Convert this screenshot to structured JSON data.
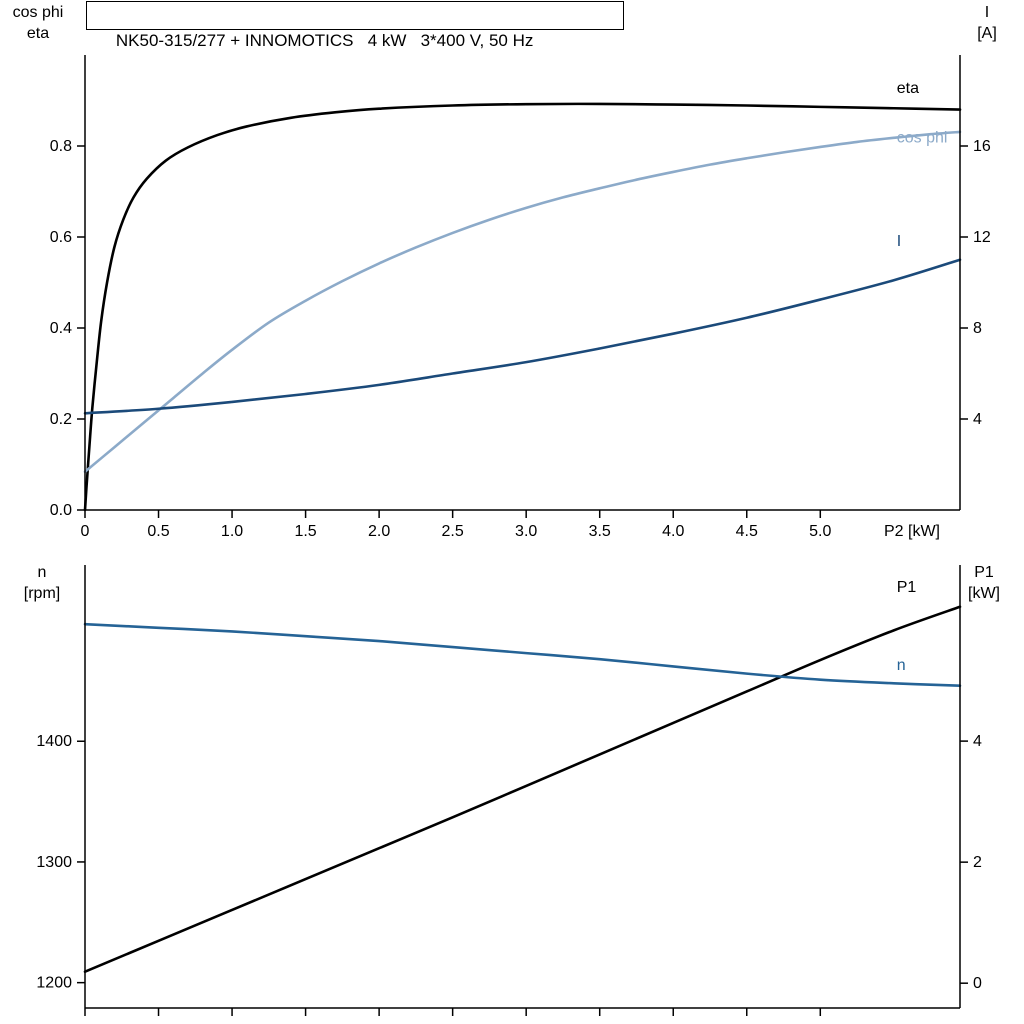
{
  "title": "NK50-315/277 + INNOMOTICS   4 kW   3*400 V, 50 Hz",
  "corner_labels": {
    "top_left": [
      "cos phi",
      "eta"
    ],
    "top_right": [
      "I",
      "[A]"
    ],
    "bottom_left": [
      "n",
      "[rpm]"
    ],
    "bottom_right": [
      "P1",
      "[kW]"
    ]
  },
  "colors": {
    "eta": "#000000",
    "cos_phi": "#8caac9",
    "current": "#1b4a7a",
    "speed": "#256396",
    "p1": "#000000",
    "axis": "#000000"
  },
  "chart_data": [
    {
      "type": "line",
      "title": "NK50-315/277 + INNOMOTICS 4 kW 3*400 V, 50 Hz",
      "grid": false,
      "x_axis": {
        "label": "P2 [kW]",
        "min": 0,
        "max": 5.95,
        "ticks": [
          0,
          0.5,
          1,
          1.5,
          2,
          2.5,
          3,
          3.5,
          4,
          4.5,
          5
        ],
        "tick_labels": [
          "0",
          "0.5",
          "1.0",
          "1.5",
          "2.0",
          "2.5",
          "3.0",
          "3.5",
          "4.0",
          "4.5",
          "5.0"
        ],
        "show_tick_labels": true
      },
      "y_left": {
        "label": "cos phi / eta",
        "min": 0,
        "max": 1.0,
        "ticks": [
          0,
          0.2,
          0.4,
          0.6,
          0.8
        ],
        "tick_labels": [
          "0.0",
          "0.2",
          "0.4",
          "0.6",
          "0.8"
        ]
      },
      "y_right": {
        "label": "I [A]",
        "min": 0,
        "max": 20,
        "ticks": [
          4,
          8,
          12,
          16
        ],
        "tick_labels": [
          "4",
          "8",
          "12",
          "16"
        ]
      },
      "series": [
        {
          "name": "eta",
          "axis": "left",
          "color": "#000000",
          "label_pos": {
            "x": 5.52,
            "y": 0.916
          },
          "points": [
            [
              0,
              0
            ],
            [
              0.01,
              0.05
            ],
            [
              0.03,
              0.14
            ],
            [
              0.05,
              0.225
            ],
            [
              0.08,
              0.325
            ],
            [
              0.11,
              0.415
            ],
            [
              0.15,
              0.5
            ],
            [
              0.2,
              0.578
            ],
            [
              0.26,
              0.638
            ],
            [
              0.33,
              0.687
            ],
            [
              0.42,
              0.728
            ],
            [
              0.55,
              0.768
            ],
            [
              0.7,
              0.797
            ],
            [
              0.9,
              0.824
            ],
            [
              1.1,
              0.843
            ],
            [
              1.4,
              0.862
            ],
            [
              1.7,
              0.874
            ],
            [
              2.0,
              0.882
            ],
            [
              2.5,
              0.889
            ],
            [
              3.0,
              0.892
            ],
            [
              3.5,
              0.8925
            ],
            [
              4.0,
              0.891
            ],
            [
              4.5,
              0.889
            ],
            [
              5.0,
              0.886
            ],
            [
              5.5,
              0.883
            ],
            [
              5.95,
              0.88
            ]
          ]
        },
        {
          "name": "cos phi",
          "axis": "left",
          "color": "#8caac9",
          "label_pos": {
            "x": 5.52,
            "y": 0.808
          },
          "points": [
            [
              0,
              0.084
            ],
            [
              0.2,
              0.138
            ],
            [
              0.4,
              0.192
            ],
            [
              0.6,
              0.246
            ],
            [
              0.8,
              0.3
            ],
            [
              1.0,
              0.352
            ],
            [
              1.25,
              0.412
            ],
            [
              1.5,
              0.46
            ],
            [
              1.75,
              0.503
            ],
            [
              2.0,
              0.542
            ],
            [
              2.25,
              0.577
            ],
            [
              2.5,
              0.609
            ],
            [
              2.75,
              0.638
            ],
            [
              3.0,
              0.664
            ],
            [
              3.25,
              0.687
            ],
            [
              3.5,
              0.707
            ],
            [
              3.75,
              0.726
            ],
            [
              4.0,
              0.743
            ],
            [
              4.25,
              0.759
            ],
            [
              4.5,
              0.773
            ],
            [
              4.75,
              0.786
            ],
            [
              5.0,
              0.798
            ],
            [
              5.25,
              0.809
            ],
            [
              5.5,
              0.818
            ],
            [
              5.75,
              0.826
            ],
            [
              5.95,
              0.831
            ]
          ]
        },
        {
          "name": "I",
          "axis": "right",
          "color": "#1b4a7a",
          "label_pos": {
            "x": 5.52,
            "y": 11.6
          },
          "points": [
            [
              0,
              4.25
            ],
            [
              0.5,
              4.45
            ],
            [
              1.0,
              4.75
            ],
            [
              1.5,
              5.1
            ],
            [
              2.0,
              5.5
            ],
            [
              2.5,
              6.0
            ],
            [
              3.0,
              6.5
            ],
            [
              3.5,
              7.1
            ],
            [
              4.0,
              7.75
            ],
            [
              4.5,
              8.45
            ],
            [
              5.0,
              9.25
            ],
            [
              5.5,
              10.1
            ],
            [
              5.95,
              11.0
            ]
          ]
        }
      ]
    },
    {
      "type": "line",
      "title": "",
      "grid": false,
      "x_axis": {
        "label": "",
        "min": 0,
        "max": 5.95,
        "ticks": [
          0,
          0.5,
          1,
          1.5,
          2,
          2.5,
          3,
          3.5,
          4,
          4.5,
          5
        ],
        "tick_labels": [],
        "show_tick_labels": false
      },
      "y_left": {
        "label": "n [rpm]",
        "min": 1179,
        "max": 1546,
        "ticks": [
          1200,
          1300,
          1400
        ],
        "tick_labels": [
          "1200",
          "1300",
          "1400"
        ]
      },
      "y_right": {
        "label": "P1 [kW]",
        "min": -0.41,
        "max": 6.91,
        "ticks": [
          0,
          2,
          4
        ],
        "tick_labels": [
          "0",
          "2",
          "4"
        ]
      },
      "series": [
        {
          "name": "P1",
          "axis": "right",
          "color": "#000000",
          "label_pos": {
            "x": 5.52,
            "y": 6.46
          },
          "points": [
            [
              0,
              0.19
            ],
            [
              0.5,
              0.7
            ],
            [
              1.0,
              1.21
            ],
            [
              1.5,
              1.72
            ],
            [
              2.0,
              2.23
            ],
            [
              2.5,
              2.74
            ],
            [
              3.0,
              3.26
            ],
            [
              3.5,
              3.78
            ],
            [
              4.0,
              4.3
            ],
            [
              4.5,
              4.82
            ],
            [
              5.0,
              5.34
            ],
            [
              5.5,
              5.83
            ],
            [
              5.95,
              6.22
            ]
          ]
        },
        {
          "name": "n",
          "axis": "left",
          "color": "#256396",
          "label_pos": {
            "x": 5.52,
            "y": 1459
          },
          "points": [
            [
              0,
              1497
            ],
            [
              0.5,
              1494
            ],
            [
              1.0,
              1491
            ],
            [
              1.5,
              1487
            ],
            [
              2.0,
              1483
            ],
            [
              2.5,
              1478
            ],
            [
              3.0,
              1473
            ],
            [
              3.5,
              1468
            ],
            [
              4.0,
              1462
            ],
            [
              4.5,
              1456
            ],
            [
              5.0,
              1451
            ],
            [
              5.5,
              1448
            ],
            [
              5.95,
              1446
            ]
          ]
        }
      ]
    }
  ]
}
